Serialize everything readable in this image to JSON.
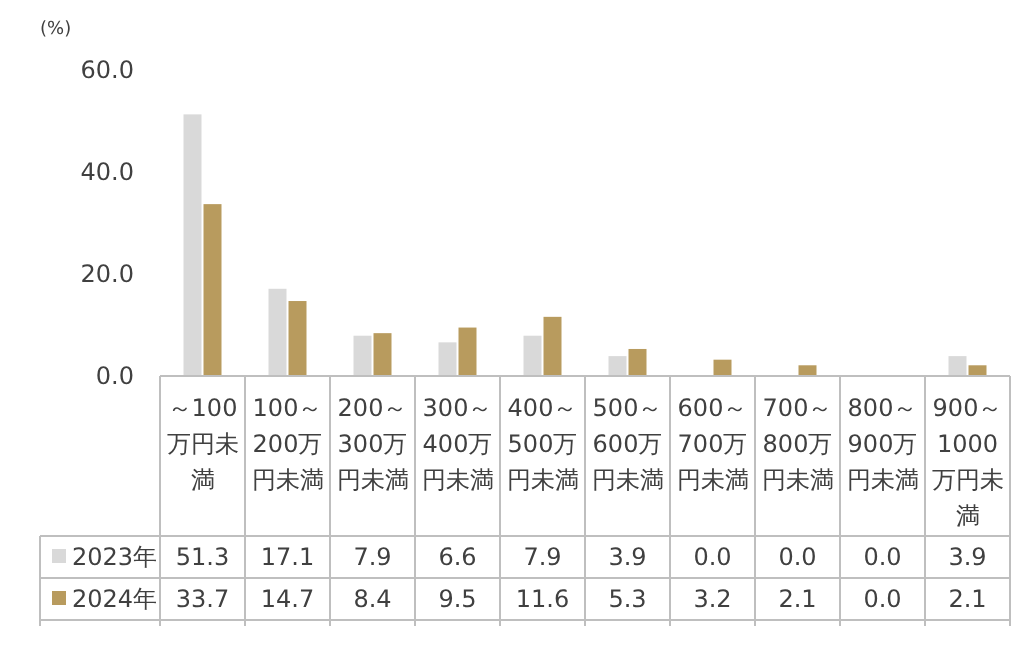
{
  "chart_data": {
    "type": "bar",
    "ylabel": "(%)",
    "categories": [
      "～100万円未満",
      "100～200万円未満",
      "200～300万円未満",
      "300～400万円未満",
      "400～500万円未満",
      "500～600万円未満",
      "600～700万円未満",
      "700～800万円未満",
      "800～900万円未満",
      "900～1000万円未満"
    ],
    "series": [
      {
        "name": "2023年",
        "color": "#d9d9d9",
        "values": [
          51.3,
          17.1,
          7.9,
          6.6,
          7.9,
          3.9,
          0.0,
          0.0,
          0.0,
          3.9
        ],
        "value_labels": [
          "51.3",
          "17.1",
          "7.9",
          "6.6",
          "7.9",
          "3.9",
          "0.0",
          "0.0",
          "0.0",
          "3.9"
        ]
      },
      {
        "name": "2024年",
        "color": "#b89b5e",
        "values": [
          33.7,
          14.7,
          8.4,
          9.5,
          11.6,
          5.3,
          3.2,
          2.1,
          0.0,
          2.1
        ],
        "value_labels": [
          "33.7",
          "14.7",
          "8.4",
          "9.5",
          "11.6",
          "5.3",
          "3.2",
          "2.1",
          "0.0",
          "2.1"
        ]
      }
    ],
    "ylim": [
      0,
      60
    ],
    "yticks": [
      {
        "value": 0,
        "label": "0.0"
      },
      {
        "value": 20,
        "label": "20.0"
      },
      {
        "value": 40,
        "label": "40.0"
      },
      {
        "value": 60,
        "label": "60.0"
      }
    ],
    "grid": false,
    "legend": "bottom left"
  }
}
